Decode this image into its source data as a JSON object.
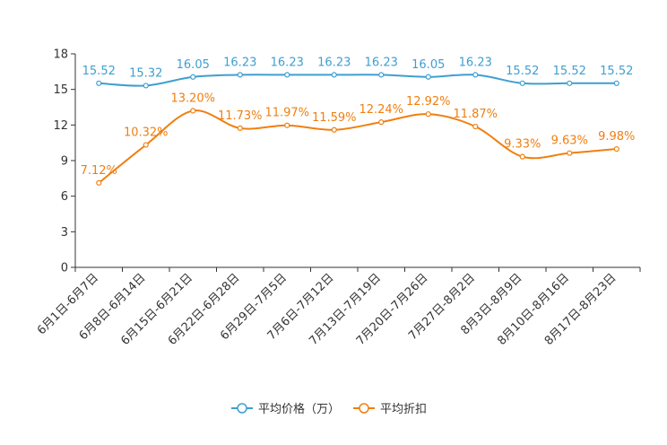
{
  "chart_data": {
    "type": "line",
    "title": "",
    "xlabel": "",
    "ylabel": "",
    "ylim": [
      0,
      18
    ],
    "yticks": [
      0,
      3,
      6,
      9,
      12,
      15,
      18
    ],
    "grid": false,
    "legend_position": "bottom",
    "categories": [
      "6月1日-6月7日",
      "6月8日-6月14日",
      "6月15日-6月21日",
      "6月22日-6月28日",
      "6月29日-7月5日",
      "7月6日-7月12日",
      "7月13日-7月19日",
      "7月20日-7月26日",
      "7月27日-8月2日",
      "8月3日-8月9日",
      "8月10日-8月16日",
      "8月17日-8月23日"
    ],
    "series": [
      {
        "name": "平均价格（万）",
        "color": "#3e9fd1",
        "values": [
          15.52,
          15.32,
          16.05,
          16.23,
          16.23,
          16.23,
          16.23,
          16.05,
          16.23,
          15.52,
          15.52,
          15.52
        ],
        "labels": [
          "15.52",
          "15.32",
          "16.05",
          "16.23",
          "16.23",
          "16.23",
          "16.23",
          "16.05",
          "16.23",
          "15.52",
          "15.52",
          "15.52"
        ]
      },
      {
        "name": "平均折扣",
        "color": "#f07f10",
        "values": [
          7.12,
          10.32,
          13.2,
          11.73,
          11.97,
          11.59,
          12.24,
          12.92,
          11.87,
          9.33,
          9.63,
          9.98
        ],
        "labels": [
          "7.12%",
          "10.32%",
          "13.20%",
          "11.73%",
          "11.97%",
          "11.59%",
          "12.24%",
          "12.92%",
          "11.87%",
          "9.33%",
          "9.63%",
          "9.98%"
        ]
      }
    ]
  }
}
